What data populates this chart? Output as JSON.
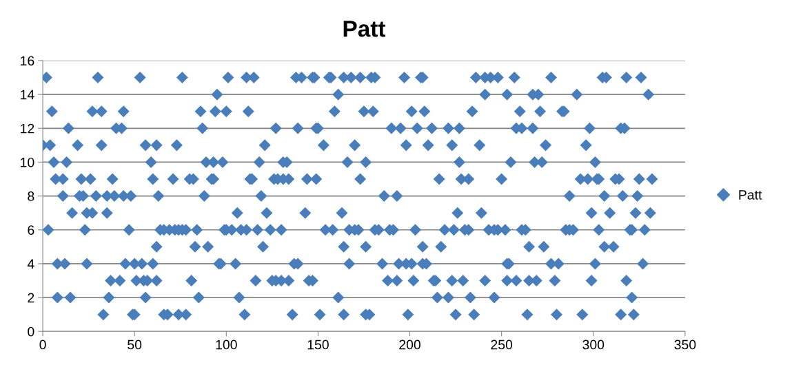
{
  "chart_data": {
    "type": "scatter",
    "title": "Patt",
    "marker": "diamond",
    "grid": "y",
    "legend": "right",
    "xlim": [
      0,
      350
    ],
    "xticks": [
      0,
      50,
      100,
      150,
      200,
      250,
      300,
      350
    ],
    "ylim": [
      0,
      16
    ],
    "yticks": [
      0,
      2,
      4,
      6,
      8,
      10,
      12,
      14,
      16
    ],
    "series": [
      {
        "name": "Patt",
        "color": "#4a7ebb",
        "x": [
          2,
          30,
          53,
          76,
          101,
          111,
          115,
          138,
          141,
          147,
          148,
          156,
          157,
          164,
          168,
          173,
          179,
          181,
          197,
          206,
          207,
          236,
          241,
          244,
          248,
          257,
          277,
          305,
          307,
          318,
          326,
          95,
          161,
          241,
          253,
          267,
          270,
          291,
          330,
          5,
          27,
          32,
          44,
          86,
          94,
          100,
          112,
          159,
          175,
          180,
          201,
          208,
          234,
          260,
          271,
          283,
          284,
          14,
          40,
          43,
          87,
          127,
          139,
          149,
          150,
          190,
          195,
          204,
          212,
          221,
          227,
          258,
          261,
          267,
          298,
          315,
          317,
          0,
          4,
          19,
          32,
          56,
          62,
          73,
          121,
          153,
          170,
          198,
          210,
          223,
          238,
          274,
          296,
          6,
          13,
          59,
          89,
          93,
          98,
          118,
          131,
          133,
          166,
          176,
          227,
          255,
          268,
          272,
          301,
          7,
          11,
          21,
          26,
          38,
          60,
          71,
          80,
          82,
          92,
          93,
          113,
          114,
          126,
          128,
          131,
          134,
          144,
          149,
          173,
          216,
          228,
          232,
          250,
          293,
          297,
          302,
          303,
          312,
          314,
          325,
          332,
          11,
          20,
          22,
          29,
          35,
          39,
          44,
          48,
          63,
          88,
          119,
          186,
          193,
          287,
          306,
          316,
          324,
          16,
          24,
          27,
          35,
          106,
          122,
          143,
          163,
          226,
          239,
          299,
          309,
          323,
          331,
          3,
          23,
          47,
          64,
          66,
          69,
          72,
          74,
          76,
          78,
          84,
          99,
          100,
          103,
          108,
          111,
          117,
          124,
          130,
          154,
          158,
          167,
          170,
          172,
          181,
          183,
          189,
          191,
          203,
          219,
          224,
          230,
          232,
          243,
          246,
          248,
          252,
          261,
          263,
          285,
          287,
          289,
          303,
          320,
          321,
          328,
          62,
          83,
          90,
          120,
          164,
          176,
          207,
          217,
          265,
          273,
          306,
          311,
          8,
          12,
          24,
          45,
          50,
          54,
          60,
          96,
          97,
          105,
          137,
          139,
          167,
          185,
          194,
          198,
          201,
          207,
          209,
          253,
          254,
          277,
          281,
          301,
          327,
          37,
          42,
          51,
          55,
          57,
          62,
          81,
          116,
          125,
          127,
          130,
          134,
          145,
          147,
          188,
          193,
          202,
          213,
          214,
          223,
          229,
          241,
          253,
          258,
          265,
          269,
          279,
          299,
          318,
          8,
          15,
          36,
          56,
          85,
          107,
          161,
          215,
          221,
          233,
          246,
          321,
          33,
          49,
          50,
          66,
          68,
          74,
          78,
          110,
          136,
          151,
          164,
          176,
          178,
          199,
          225,
          235,
          264,
          280,
          294,
          315,
          322
        ],
        "values": [
          15,
          15,
          15,
          15,
          15,
          15,
          15,
          15,
          15,
          15,
          15,
          15,
          15,
          15,
          15,
          15,
          15,
          15,
          15,
          15,
          15,
          15,
          15,
          15,
          15,
          15,
          15,
          15,
          15,
          15,
          15,
          14,
          14,
          14,
          14,
          14,
          14,
          14,
          14,
          13,
          13,
          13,
          13,
          13,
          13,
          13,
          13,
          13,
          13,
          13,
          13,
          13,
          13,
          13,
          13,
          13,
          13,
          12,
          12,
          12,
          12,
          12,
          12,
          12,
          12,
          12,
          12,
          12,
          12,
          12,
          12,
          12,
          12,
          12,
          12,
          12,
          12,
          11,
          11,
          11,
          11,
          11,
          11,
          11,
          11,
          11,
          11,
          11,
          11,
          11,
          11,
          11,
          11,
          10,
          10,
          10,
          10,
          10,
          10,
          10,
          10,
          10,
          10,
          10,
          10,
          10,
          10,
          10,
          10,
          9,
          9,
          9,
          9,
          9,
          9,
          9,
          9,
          9,
          9,
          9,
          9,
          9,
          9,
          9,
          9,
          9,
          9,
          9,
          9,
          9,
          9,
          9,
          9,
          9,
          9,
          9,
          9,
          9,
          9,
          9,
          9,
          8,
          8,
          8,
          8,
          8,
          8,
          8,
          8,
          8,
          8,
          8,
          8,
          8,
          8,
          8,
          8,
          8,
          7,
          7,
          7,
          7,
          7,
          7,
          7,
          7,
          7,
          7,
          7,
          7,
          7,
          7,
          6,
          6,
          6,
          6,
          6,
          6,
          6,
          6,
          6,
          6,
          6,
          6,
          6,
          6,
          6,
          6,
          6,
          6,
          6,
          6,
          6,
          6,
          6,
          6,
          6,
          6,
          6,
          6,
          6,
          6,
          6,
          6,
          6,
          6,
          6,
          6,
          6,
          6,
          6,
          6,
          6,
          6,
          6,
          6,
          6,
          6,
          5,
          5,
          5,
          5,
          5,
          5,
          5,
          5,
          5,
          5,
          5,
          5,
          4,
          4,
          4,
          4,
          4,
          4,
          4,
          4,
          4,
          4,
          4,
          4,
          4,
          4,
          4,
          4,
          4,
          4,
          4,
          4,
          4,
          4,
          4,
          4,
          4,
          3,
          3,
          3,
          3,
          3,
          3,
          3,
          3,
          3,
          3,
          3,
          3,
          3,
          3,
          3,
          3,
          3,
          3,
          3,
          3,
          3,
          3,
          3,
          3,
          3,
          3,
          3,
          3,
          3,
          2,
          2,
          2,
          2,
          2,
          2,
          2,
          2,
          2,
          2,
          2,
          2,
          1,
          1,
          1,
          1,
          1,
          1,
          1,
          1,
          1,
          1,
          1,
          1,
          1,
          1,
          1,
          1,
          1,
          1,
          1,
          1,
          1
        ]
      }
    ]
  }
}
